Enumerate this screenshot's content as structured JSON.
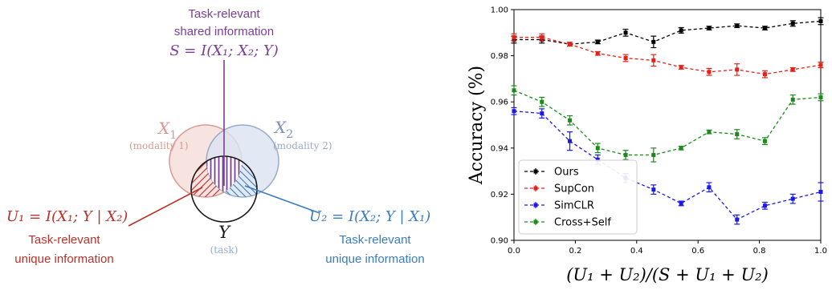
{
  "diagram": {
    "shared": {
      "title_line1": "Task-relevant",
      "title_line2": "shared information",
      "formula": "S = I(X₁; X₂; Y)",
      "color": "#7a3e96"
    },
    "x1": {
      "symbol": "X",
      "subscript": "1",
      "modality": "(modality 1)",
      "color": "#d99a93",
      "fill": "#f6dedb"
    },
    "x2": {
      "symbol": "X",
      "subscript": "2",
      "modality": "(modality 2)",
      "color": "#9aaac8",
      "fill": "#dbe3f1"
    },
    "y": {
      "symbol": "Y",
      "task": "(task)"
    },
    "u1": {
      "formula": "U₁ = I(X₁; Y | X₂)",
      "line1": "Task-relevant",
      "line2": "unique information",
      "color": "#b8322a"
    },
    "u2": {
      "formula": "U₂ = I(X₂; Y | X₁)",
      "line1": "Task-relevant",
      "line2": "unique information",
      "color": "#3a7cc0"
    }
  },
  "chart_data": {
    "type": "line",
    "xlabel": "(U₁ + U₂)/(S + U₁ + U₂)",
    "ylabel": "Accuracy (%)",
    "xlim": [
      0.0,
      1.0
    ],
    "ylim": [
      0.9,
      1.0
    ],
    "xticks": [
      "0.0",
      "0.2",
      "0.4",
      "0.6",
      "0.8",
      "1.0"
    ],
    "yticks": [
      "0.90",
      "0.92",
      "0.94",
      "0.96",
      "0.98",
      "1.00"
    ],
    "grid": false,
    "legend_position": "lower-left",
    "x": [
      0.0,
      0.091,
      0.182,
      0.273,
      0.364,
      0.455,
      0.545,
      0.636,
      0.727,
      0.818,
      0.909,
      1.0
    ],
    "series": [
      {
        "name": "Ours",
        "color": "#000000",
        "values": [
          0.987,
          0.987,
          0.985,
          0.986,
          0.99,
          0.986,
          0.991,
          0.992,
          0.993,
          0.992,
          0.994,
          0.995
        ],
        "errors": [
          0.0015,
          0.0015,
          0.0008,
          0.0008,
          0.0015,
          0.0025,
          0.0012,
          0.0008,
          0.0008,
          0.0008,
          0.0012,
          0.0015
        ]
      },
      {
        "name": "SupCon",
        "color": "#e8201a",
        "values": [
          0.988,
          0.988,
          0.985,
          0.981,
          0.979,
          0.978,
          0.975,
          0.973,
          0.974,
          0.972,
          0.974,
          0.976
        ],
        "errors": [
          0.0015,
          0.0015,
          0.0008,
          0.0008,
          0.0015,
          0.0025,
          0.0008,
          0.0015,
          0.0025,
          0.0015,
          0.0008,
          0.0012
        ]
      },
      {
        "name": "SimCLR",
        "color": "#1a1ae8",
        "values": [
          0.956,
          0.955,
          0.943,
          0.935,
          0.927,
          0.922,
          0.916,
          0.923,
          0.909,
          0.915,
          0.918,
          0.921
        ],
        "errors": [
          0.0015,
          0.002,
          0.004,
          0.002,
          0.002,
          0.002,
          0.001,
          0.002,
          0.002,
          0.0015,
          0.002,
          0.004
        ]
      },
      {
        "name": "Cross+Self",
        "color": "#1a8a1a",
        "values": [
          0.965,
          0.96,
          0.952,
          0.94,
          0.937,
          0.937,
          0.94,
          0.947,
          0.946,
          0.943,
          0.961,
          0.962
        ],
        "errors": [
          0.002,
          0.002,
          0.002,
          0.002,
          0.002,
          0.003,
          0.0008,
          0.0008,
          0.002,
          0.0015,
          0.002,
          0.0015
        ]
      }
    ]
  }
}
